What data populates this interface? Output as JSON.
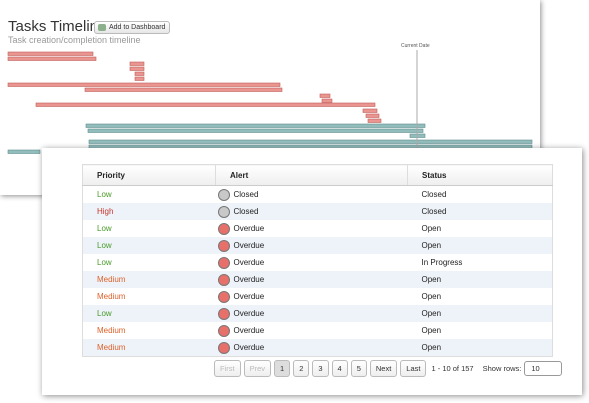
{
  "header": {
    "title": "Tasks Timeline",
    "button": "Add to Dashboard",
    "subtitle": "Task creation/completion timeline",
    "marker": "Current Date"
  },
  "table": {
    "columns": [
      "Priority",
      "Alert",
      "Status"
    ],
    "rows": [
      {
        "priority": "Low",
        "priority_color": "#4a9a2a",
        "alert": "Closed",
        "alert_color": "#c8c8c8",
        "status": "Closed"
      },
      {
        "priority": "High",
        "priority_color": "#c8342c",
        "alert": "Closed",
        "alert_color": "#c8c8c8",
        "status": "Closed"
      },
      {
        "priority": "Low",
        "priority_color": "#4a9a2a",
        "alert": "Overdue",
        "alert_color": "#e8706a",
        "status": "Open"
      },
      {
        "priority": "Low",
        "priority_color": "#4a9a2a",
        "alert": "Overdue",
        "alert_color": "#e8706a",
        "status": "Open"
      },
      {
        "priority": "Low",
        "priority_color": "#4a9a2a",
        "alert": "Overdue",
        "alert_color": "#e8706a",
        "status": "In Progress"
      },
      {
        "priority": "Medium",
        "priority_color": "#e0622a",
        "alert": "Overdue",
        "alert_color": "#e8706a",
        "status": "Open"
      },
      {
        "priority": "Medium",
        "priority_color": "#e0622a",
        "alert": "Overdue",
        "alert_color": "#e8706a",
        "status": "Open"
      },
      {
        "priority": "Low",
        "priority_color": "#4a9a2a",
        "alert": "Overdue",
        "alert_color": "#e8706a",
        "status": "Open"
      },
      {
        "priority": "Medium",
        "priority_color": "#e0622a",
        "alert": "Overdue",
        "alert_color": "#e8706a",
        "status": "Open"
      },
      {
        "priority": "Medium",
        "priority_color": "#e0622a",
        "alert": "Overdue",
        "alert_color": "#e8706a",
        "status": "Open"
      }
    ]
  },
  "pagination": {
    "first": "First",
    "prev": "Prev",
    "pages": [
      "1",
      "2",
      "3",
      "4",
      "5"
    ],
    "next": "Next",
    "last": "Last",
    "range": "1 - 10 of 157",
    "rows_label": "Show rows:",
    "rows_value": "10"
  }
}
